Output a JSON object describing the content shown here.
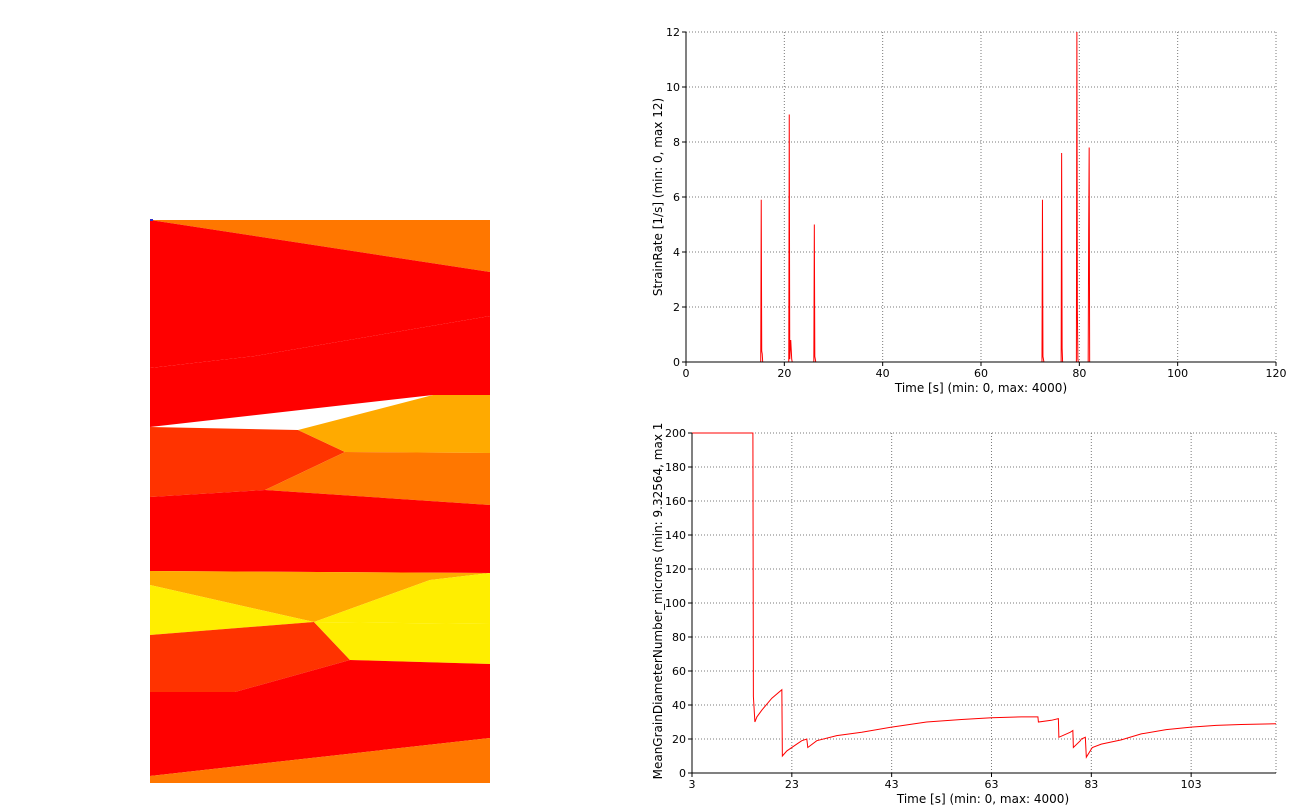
{
  "colors": {
    "red": "#ff0000",
    "orange_red": "#ff3300",
    "orange": "#ff7700",
    "amber": "#ffaa00",
    "yellow": "#ffee00",
    "plot_line": "#ff0000",
    "grid": "#7a7a7a"
  },
  "contour": {
    "bands": [
      {
        "color": "red"
      },
      {
        "color": "orange"
      },
      {
        "color": "orange_red"
      },
      {
        "color": "red"
      },
      {
        "color": "amber"
      },
      {
        "color": "orange"
      },
      {
        "color": "yellow"
      },
      {
        "color": "amber"
      },
      {
        "color": "yellow"
      },
      {
        "color": "red"
      },
      {
        "color": "orange"
      }
    ]
  },
  "chart_data": [
    {
      "type": "line",
      "xlabel": "Time [s] (min: 0, max: 4000)",
      "ylabel": "StrainRate [1/s] (min: 0, max 12)",
      "xlim": [
        0,
        120
      ],
      "ylim": [
        0,
        12
      ],
      "x_ticks": [
        "0",
        "20",
        "40",
        "60",
        "80",
        "100",
        "120"
      ],
      "y_ticks": [
        "0",
        "2",
        "4",
        "6",
        "8",
        "10",
        "12"
      ],
      "grid": true,
      "series": [
        {
          "x": [
            0,
            15.2,
            15.3,
            15.4,
            15.5,
            15.6,
            16,
            20.9,
            21.0,
            21.1,
            21.3,
            21.5,
            21.6,
            26.0,
            26.1,
            26.2,
            26.3,
            26.4,
            72.4,
            72.5,
            72.6,
            72.7,
            72.8,
            76.3,
            76.4,
            76.5,
            76.6,
            79.4,
            79.5,
            79.6,
            79.7,
            79.8,
            81.8,
            81.9,
            82.0,
            82.1,
            120
          ],
          "y": [
            0,
            0,
            5.9,
            0.4,
            0.3,
            0,
            0,
            0,
            9.0,
            0.1,
            0.8,
            0.1,
            0,
            0,
            5.0,
            0.2,
            0.1,
            0,
            0,
            5.9,
            0.2,
            0.1,
            0,
            0,
            7.6,
            0.5,
            0,
            0,
            12.0,
            1.9,
            0.1,
            0,
            0,
            4.8,
            7.8,
            0,
            0
          ]
        }
      ]
    },
    {
      "type": "line",
      "xlabel": "Time [s] (min: 0, max: 4000)",
      "ylabel": "MeanGrainDiameterNumber_microns (min: 9.32564, max 1",
      "xlim": [
        3,
        120
      ],
      "ylim": [
        0,
        200
      ],
      "x_ticks": [
        "3",
        "23",
        "43",
        "63",
        "83",
        "103"
      ],
      "y_ticks": [
        "0",
        "20",
        "40",
        "60",
        "80",
        "100",
        "120",
        "140",
        "160",
        "180",
        "200"
      ],
      "grid": true,
      "series": [
        {
          "x": [
            3,
            15.2,
            15.3,
            15.6,
            16,
            17,
            19,
            21,
            21.1,
            22,
            24,
            25,
            26,
            26.2,
            28,
            32,
            37,
            43,
            50,
            57,
            63,
            69,
            72.3,
            72.4,
            75,
            76.4,
            76.5,
            78.8,
            79.3,
            79.4,
            80.8,
            81.0,
            81.8,
            82.0,
            83.2,
            85,
            89,
            93,
            98,
            103,
            108,
            113,
            120
          ],
          "y": [
            200,
            200,
            45,
            30,
            33,
            37,
            44,
            49,
            10,
            13,
            17,
            19,
            20,
            15,
            19,
            22,
            24,
            27,
            30,
            31.5,
            32.5,
            33,
            33,
            30,
            31,
            32,
            21,
            24,
            25,
            15,
            19,
            20,
            21,
            9.3,
            15,
            17,
            19.5,
            23,
            25.5,
            27,
            28,
            28.5,
            29
          ]
        }
      ]
    }
  ]
}
